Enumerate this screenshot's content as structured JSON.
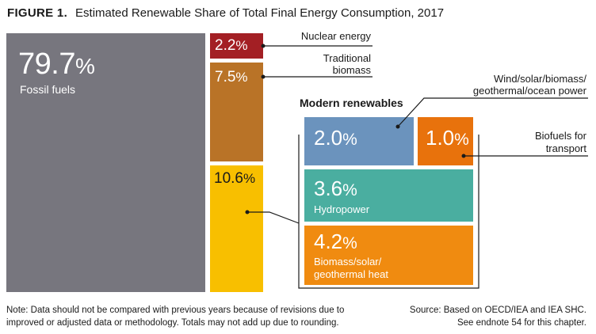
{
  "title": {
    "figure": "FIGURE 1.",
    "text": "Estimated Renewable Share of Total Final Energy Consumption, 2017"
  },
  "chart_data": {
    "type": "treemap",
    "title": "Estimated Renewable Share of Total Final Energy Consumption, 2017",
    "items": [
      {
        "id": "fossil",
        "label": "Fossil fuels",
        "value": 79.7,
        "value_text": "79.7",
        "color": "#77767e"
      },
      {
        "id": "nuclear",
        "label": "Nuclear energy",
        "value": 2.2,
        "value_text": "2.2",
        "color": "#a31f24"
      },
      {
        "id": "traditional",
        "label": "Traditional biomass",
        "value": 7.5,
        "value_text": "7.5",
        "color": "#b97327"
      },
      {
        "id": "modern",
        "label": "Modern renewables",
        "value": 10.6,
        "value_text": "10.6",
        "color": "#f8bf00"
      }
    ],
    "modern_renewables": {
      "label": "Modern renewables",
      "items": [
        {
          "id": "wind",
          "label": "Wind/solar/biomass/ geothermal/ocean power",
          "value": 2.0,
          "value_text": "2.0",
          "color": "#6b93bd"
        },
        {
          "id": "biofuels",
          "label": "Biofuels for transport",
          "value": 1.0,
          "value_text": "1.0",
          "color": "#e8720c"
        },
        {
          "id": "hydro",
          "label": "Hydropower",
          "value": 3.6,
          "value_text": "3.6",
          "color": "#4aaea0"
        },
        {
          "id": "heat",
          "label": "Biomass/solar/ geothermal heat",
          "value": 4.2,
          "value_text": "4.2",
          "color": "#f08b10"
        }
      ]
    }
  },
  "labels": {
    "nuclear": "Nuclear energy",
    "traditional_1": "Traditional",
    "traditional_2": "biomass",
    "wind_1": "Wind/solar/biomass/",
    "wind_2": "geothermal/ocean power",
    "biofuels_1": "Biofuels for",
    "biofuels_2": "transport",
    "modern": "Modern renewables",
    "fossil": "Fossil fuels",
    "hydro": "Hydropower",
    "heat_1": "Biomass/solar/",
    "heat_2": "geothermal heat",
    "pct_sign": "%"
  },
  "note": "Note: Data should not be compared with previous years because of revisions due to improved or adjusted data or methodology. Totals may not add up due to rounding.",
  "source_1": "Source: Based on OECD/IEA and IEA SHC.",
  "source_2": "See endnote 54 for this chapter."
}
